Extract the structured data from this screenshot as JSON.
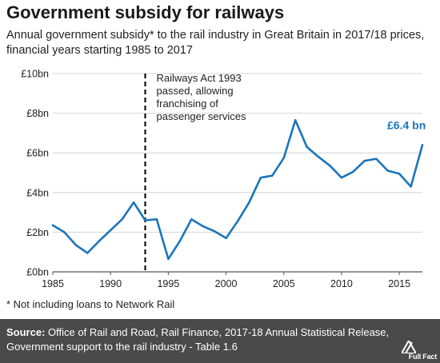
{
  "header": {
    "title": "Government subsidy for railways",
    "subtitle": "Annual government subsidy* to the rail industry in Great Britain in 2017/18 prices, financial years starting 1985 to 2017"
  },
  "chart_data": {
    "type": "line",
    "title": "Government subsidy for railways",
    "xlabel": "",
    "ylabel": "",
    "xlim": [
      1985,
      2017
    ],
    "ylim": [
      0,
      10
    ],
    "x_ticks": [
      1985,
      1990,
      1995,
      2000,
      2005,
      2010,
      2015
    ],
    "y_ticks": [
      0,
      2,
      4,
      6,
      8,
      10
    ],
    "y_tick_labels": [
      "£0bn",
      "£2bn",
      "£4bn",
      "£6bn",
      "£8bn",
      "£10bn"
    ],
    "grid": true,
    "series": [
      {
        "x": [
          1985,
          1986,
          1987,
          1988,
          1989,
          1990,
          1991,
          1992,
          1993,
          1994,
          1995,
          1996,
          1997,
          1998,
          1999,
          2000,
          2001,
          2002,
          2003,
          2004,
          2005,
          2006,
          2007,
          2008,
          2009,
          2010,
          2011,
          2012,
          2013,
          2014,
          2015,
          2016,
          2017
        ],
        "values": [
          2.35,
          2.0,
          1.35,
          0.95,
          1.55,
          2.1,
          2.65,
          3.5,
          2.6,
          2.65,
          0.65,
          1.55,
          2.65,
          2.3,
          2.05,
          1.7,
          2.55,
          3.5,
          4.75,
          4.85,
          5.75,
          7.65,
          6.3,
          5.8,
          5.35,
          4.75,
          5.05,
          5.6,
          5.7,
          5.1,
          4.95,
          4.3,
          6.4
        ],
        "color": "#1b75bc"
      }
    ],
    "annotations": [
      {
        "x": 1993,
        "type": "vline",
        "text_lines": [
          "Railways Act 1993",
          "passed, allowing",
          "franchising of",
          "passenger services"
        ]
      },
      {
        "x": 2017,
        "y": 6.4,
        "type": "value_label",
        "text": "£6.4 bn",
        "color": "#1b75bc"
      }
    ]
  },
  "footer": {
    "footnote": "* Not including loans to Network Rail",
    "source_label": "Source:",
    "source_text": "Office of Rail and Road, Rail Finance, 2017-18 Annual Statistical Release, Government support to the rail industry - Table 1.6",
    "logo_text": "Full Fact"
  }
}
